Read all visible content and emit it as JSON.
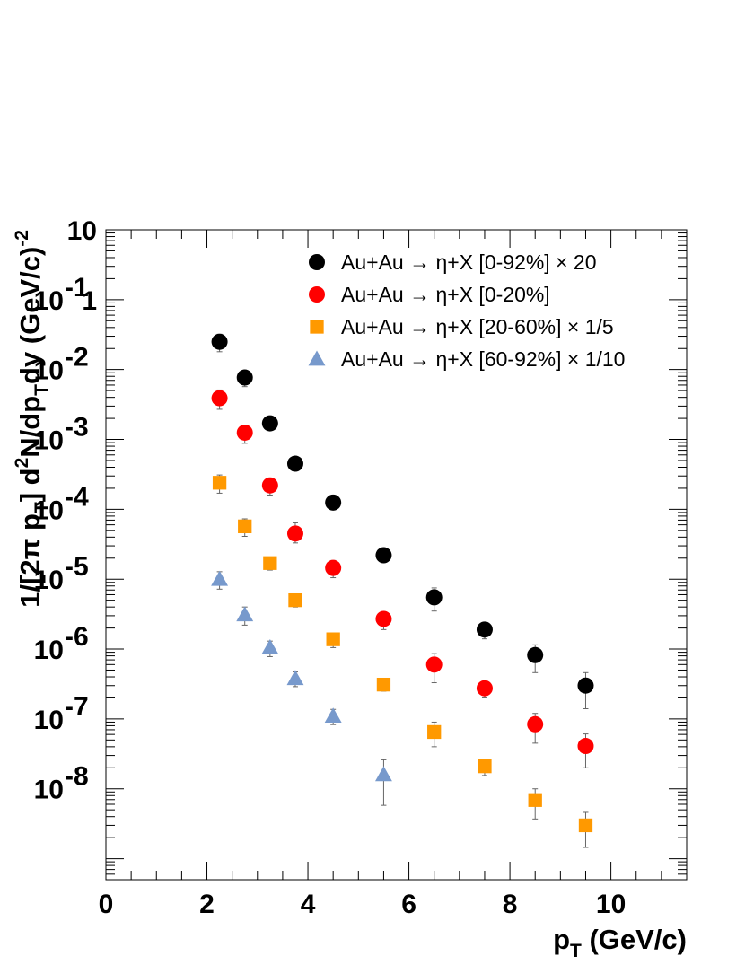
{
  "chart_data": {
    "type": "scatter",
    "title": "",
    "xlabel": {
      "main": "p",
      "sub": "T",
      "rest": " (GeV/c)"
    },
    "ylabel": {
      "p1": "1/[2",
      "pi": "π",
      "p2": " p",
      "sub1": "T",
      "p3": "] d",
      "sup1": "2",
      "p4": "N/dp",
      "sub2": "T",
      "p5": "dy (GeV/c)",
      "sup2": "-2"
    },
    "xlim": [
      0,
      11.5
    ],
    "ylim": [
      5e-09,
      10
    ],
    "yscale": "log",
    "grid": false,
    "legend_position": "top-right",
    "x_ticks": [
      "0",
      "2",
      "4",
      "6",
      "8",
      "10"
    ],
    "y_ticks": [
      {
        "base": "10",
        "exp": "-8"
      },
      {
        "base": "10",
        "exp": "-7"
      },
      {
        "base": "10",
        "exp": "-6"
      },
      {
        "base": "10",
        "exp": "-5"
      },
      {
        "base": "10",
        "exp": "-4"
      },
      {
        "base": "10",
        "exp": "-3"
      },
      {
        "base": "10",
        "exp": "-2"
      },
      {
        "base": "10",
        "exp": "-1"
      },
      {
        "base": "1",
        "exp": ""
      },
      {
        "base": "10",
        "exp": ""
      }
    ],
    "series": [
      {
        "name": "Au+Au → η+X [0-92%] × 20",
        "marker": "circle",
        "color": "#000000",
        "x": [
          2.25,
          2.75,
          3.25,
          3.75,
          4.5,
          5.5,
          6.5,
          7.5,
          8.5,
          9.5
        ],
        "y": [
          0.25,
          0.077,
          0.017,
          0.0045,
          0.00125,
          0.00022,
          5.5e-05,
          1.9e-05,
          8.2e-06,
          3e-06
        ],
        "err_low": [
          0.18,
          0.057,
          0.014,
          0.0038,
          0.00098,
          0.00019,
          3.5e-05,
          1.4e-05,
          4.6e-06,
          1.4e-06
        ],
        "err_high": [
          0.32,
          0.095,
          0.02,
          0.0052,
          0.0015,
          0.00026,
          7.5e-05,
          2.4e-05,
          1.15e-05,
          4.6e-06
        ]
      },
      {
        "name": "Au+Au → η+X [0-20%]",
        "marker": "circle",
        "color": "#ff0000",
        "x": [
          2.25,
          2.75,
          3.25,
          3.75,
          4.5,
          5.5,
          6.5,
          7.5,
          8.5,
          9.5
        ],
        "y": [
          0.039,
          0.0125,
          0.0022,
          0.00045,
          0.000145,
          2.7e-05,
          6e-06,
          2.75e-06,
          8.4e-07,
          4.1e-07
        ],
        "err_low": [
          0.027,
          0.0088,
          0.0016,
          0.00033,
          0.000105,
          1.9e-05,
          3.3e-06,
          2e-06,
          4.5e-07,
          2e-07
        ],
        "err_high": [
          0.051,
          0.016,
          0.0028,
          0.00064,
          0.000185,
          3.4e-05,
          8.6e-06,
          3.4e-06,
          1.2e-06,
          6.1e-07
        ]
      },
      {
        "name": "Au+Au → η+X [20-60%] × 1/5",
        "marker": "square",
        "color": "#ff9900",
        "x": [
          2.25,
          2.75,
          3.25,
          3.75,
          4.5,
          5.5,
          6.5,
          7.5,
          8.5,
          9.5
        ],
        "y": [
          0.0024,
          0.00057,
          0.00017,
          5e-05,
          1.38e-05,
          3.1e-06,
          6.5e-07,
          2.1e-07,
          6.9e-08,
          3e-08
        ],
        "err_low": [
          0.0017,
          0.00041,
          0.000135,
          4e-05,
          1.05e-05,
          2.5e-06,
          4e-07,
          1.55e-07,
          3.7e-08,
          1.45e-08
        ],
        "err_high": [
          0.0031,
          0.00073,
          0.000205,
          6e-05,
          1.7e-05,
          3.7e-06,
          9e-07,
          2.6e-07,
          1e-07,
          4.6e-08
        ]
      },
      {
        "name": "Au+Au → η+X [60-92%] × 1/10",
        "marker": "triangle",
        "color": "#7799cc",
        "x": [
          2.25,
          2.75,
          3.25,
          3.75,
          4.5,
          5.5
        ],
        "y": [
          0.0001,
          3.1e-05,
          1.05e-05,
          3.8e-06,
          1.1e-06,
          1.6e-07
        ],
        "err_low": [
          7.2e-05,
          2.2e-05,
          7.8e-06,
          2.9e-06,
          8.3e-07,
          5.8e-08
        ],
        "err_high": [
          0.000128,
          4e-05,
          1.3e-05,
          4.7e-06,
          1.37e-06,
          2.6e-07
        ]
      }
    ]
  }
}
